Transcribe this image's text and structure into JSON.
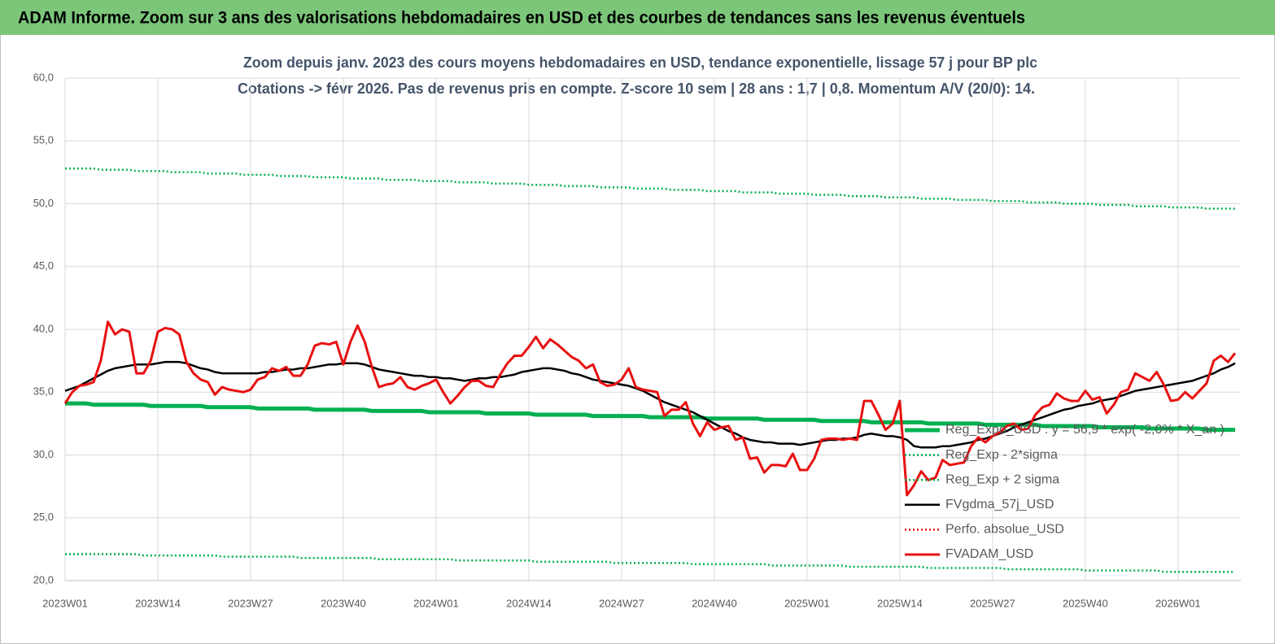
{
  "header": {
    "title": "ADAM Informe. Zoom sur 3 ans des valorisations hebdomadaires en USD et des courbes de tendances sans les revenus éventuels"
  },
  "chart_data": {
    "type": "line",
    "title": "Zoom depuis janv. 2023 des cours moyens hebdomadaires en USD, tendance exponentielle, lissage 57 j pour BP plc",
    "subtitle": "Cotations -> févr 2026.  Pas de revenus pris en compte. Z-score 10 sem | 28 ans : 1,7 | 0,8. Momentum A/V (20/0): 14.",
    "categories": [
      "2023W01",
      null,
      null,
      null,
      null,
      null,
      null,
      null,
      null,
      null,
      null,
      null,
      null,
      "2023W14",
      null,
      null,
      null,
      null,
      null,
      null,
      null,
      null,
      null,
      null,
      null,
      null,
      "2023W27",
      null,
      null,
      null,
      null,
      null,
      null,
      null,
      null,
      null,
      null,
      null,
      null,
      "2023W40",
      null,
      null,
      null,
      null,
      null,
      null,
      null,
      null,
      null,
      null,
      null,
      null,
      "2024W01",
      null,
      null,
      null,
      null,
      null,
      null,
      null,
      null,
      null,
      null,
      null,
      null,
      "2024W14",
      null,
      null,
      null,
      null,
      null,
      null,
      null,
      null,
      null,
      null,
      null,
      null,
      "2024W27",
      null,
      null,
      null,
      null,
      null,
      null,
      null,
      null,
      null,
      null,
      null,
      null,
      "2024W40",
      null,
      null,
      null,
      null,
      null,
      null,
      null,
      null,
      null,
      null,
      null,
      null,
      "2025W01",
      null,
      null,
      null,
      null,
      null,
      null,
      null,
      null,
      null,
      null,
      null,
      null,
      "2025W14",
      null,
      null,
      null,
      null,
      null,
      null,
      null,
      null,
      null,
      null,
      null,
      null,
      "2025W27",
      null,
      null,
      null,
      null,
      null,
      null,
      null,
      null,
      null,
      null,
      null,
      null,
      "2025W40",
      null,
      null,
      null,
      null,
      null,
      null,
      null,
      null,
      null,
      null,
      null,
      null,
      "2026W01",
      null,
      null,
      null,
      null,
      null,
      null,
      null,
      null
    ],
    "ylim": [
      20,
      60
    ],
    "yticks": [
      {
        "value": 20,
        "label": "20,0"
      },
      {
        "value": 25,
        "label": "25,0"
      },
      {
        "value": 30,
        "label": "30,0"
      },
      {
        "value": 35,
        "label": "35,0"
      },
      {
        "value": 40,
        "label": "40,0"
      },
      {
        "value": 45,
        "label": "45,0"
      },
      {
        "value": 50,
        "label": "50,0"
      },
      {
        "value": 55,
        "label": "55,0"
      },
      {
        "value": 60,
        "label": "60,0"
      }
    ],
    "grid": true,
    "legend": "lower-right",
    "series": [
      {
        "name": "Reg_Expo_USD : y = 56,9 * exp( -2,0% * X_an )",
        "color": "#00b050",
        "line_style": "thick",
        "values": [
          34.1,
          34.1,
          34.1,
          34.1,
          34.0,
          34.0,
          34.0,
          34.0,
          34.0,
          34.0,
          34.0,
          34.0,
          33.9,
          33.9,
          33.9,
          33.9,
          33.9,
          33.9,
          33.9,
          33.9,
          33.8,
          33.8,
          33.8,
          33.8,
          33.8,
          33.8,
          33.8,
          33.7,
          33.7,
          33.7,
          33.7,
          33.7,
          33.7,
          33.7,
          33.7,
          33.6,
          33.6,
          33.6,
          33.6,
          33.6,
          33.6,
          33.6,
          33.6,
          33.5,
          33.5,
          33.5,
          33.5,
          33.5,
          33.5,
          33.5,
          33.5,
          33.4,
          33.4,
          33.4,
          33.4,
          33.4,
          33.4,
          33.4,
          33.4,
          33.3,
          33.3,
          33.3,
          33.3,
          33.3,
          33.3,
          33.3,
          33.2,
          33.2,
          33.2,
          33.2,
          33.2,
          33.2,
          33.2,
          33.2,
          33.1,
          33.1,
          33.1,
          33.1,
          33.1,
          33.1,
          33.1,
          33.1,
          33.0,
          33.0,
          33.0,
          33.0,
          33.0,
          33.0,
          33.0,
          33.0,
          32.9,
          32.9,
          32.9,
          32.9,
          32.9,
          32.9,
          32.9,
          32.9,
          32.8,
          32.8,
          32.8,
          32.8,
          32.8,
          32.8,
          32.8,
          32.8,
          32.7,
          32.7,
          32.7,
          32.7,
          32.7,
          32.7,
          32.7,
          32.6,
          32.6,
          32.6,
          32.6,
          32.6,
          32.6,
          32.6,
          32.6,
          32.5,
          32.5,
          32.5,
          32.5,
          32.5,
          32.5,
          32.5,
          32.5,
          32.4,
          32.4,
          32.4,
          32.4,
          32.4,
          32.4,
          32.4,
          32.4,
          32.3,
          32.3,
          32.3,
          32.3,
          32.3,
          32.3,
          32.3,
          32.3,
          32.2,
          32.2,
          32.2,
          32.2,
          32.2,
          32.2,
          32.2,
          32.1,
          32.1,
          32.1,
          32.1,
          32.1,
          32.1,
          32.1,
          32.1,
          32.0,
          32.0,
          32.0,
          32.0,
          32.0
        ]
      },
      {
        "name": "Reg_Exp - 2*sigma",
        "color": "#00b050",
        "line_style": "dotted",
        "values": [
          22.1,
          22.1,
          22.1,
          22.1,
          22.1,
          22.1,
          22.1,
          22.1,
          22.1,
          22.1,
          22.1,
          22.0,
          22.0,
          22.0,
          22.0,
          22.0,
          22.0,
          22.0,
          22.0,
          22.0,
          22.0,
          22.0,
          21.9,
          21.9,
          21.9,
          21.9,
          21.9,
          21.9,
          21.9,
          21.9,
          21.9,
          21.9,
          21.9,
          21.8,
          21.8,
          21.8,
          21.8,
          21.8,
          21.8,
          21.8,
          21.8,
          21.8,
          21.8,
          21.8,
          21.7,
          21.7,
          21.7,
          21.7,
          21.7,
          21.7,
          21.7,
          21.7,
          21.7,
          21.7,
          21.7,
          21.6,
          21.6,
          21.6,
          21.6,
          21.6,
          21.6,
          21.6,
          21.6,
          21.6,
          21.6,
          21.6,
          21.5,
          21.5,
          21.5,
          21.5,
          21.5,
          21.5,
          21.5,
          21.5,
          21.5,
          21.5,
          21.5,
          21.4,
          21.4,
          21.4,
          21.4,
          21.4,
          21.4,
          21.4,
          21.4,
          21.4,
          21.4,
          21.4,
          21.3,
          21.3,
          21.3,
          21.3,
          21.3,
          21.3,
          21.3,
          21.3,
          21.3,
          21.3,
          21.3,
          21.2,
          21.2,
          21.2,
          21.2,
          21.2,
          21.2,
          21.2,
          21.2,
          21.2,
          21.2,
          21.2,
          21.1,
          21.1,
          21.1,
          21.1,
          21.1,
          21.1,
          21.1,
          21.1,
          21.1,
          21.1,
          21.1,
          21.0,
          21.0,
          21.0,
          21.0,
          21.0,
          21.0,
          21.0,
          21.0,
          21.0,
          21.0,
          21.0,
          20.9,
          20.9,
          20.9,
          20.9,
          20.9,
          20.9,
          20.9,
          20.9,
          20.9,
          20.9,
          20.9,
          20.8,
          20.8,
          20.8,
          20.8,
          20.8,
          20.8,
          20.8,
          20.8,
          20.8,
          20.8,
          20.8,
          20.7,
          20.7,
          20.7,
          20.7,
          20.7,
          20.7,
          20.7,
          20.7,
          20.7,
          20.7,
          20.7
        ]
      },
      {
        "name": "Reg_Exp + 2 sigma",
        "color": "#00b050",
        "line_style": "dotted",
        "values": [
          52.8,
          52.8,
          52.8,
          52.8,
          52.8,
          52.7,
          52.7,
          52.7,
          52.7,
          52.7,
          52.6,
          52.6,
          52.6,
          52.6,
          52.6,
          52.5,
          52.5,
          52.5,
          52.5,
          52.5,
          52.4,
          52.4,
          52.4,
          52.4,
          52.4,
          52.3,
          52.3,
          52.3,
          52.3,
          52.3,
          52.2,
          52.2,
          52.2,
          52.2,
          52.2,
          52.1,
          52.1,
          52.1,
          52.1,
          52.1,
          52.0,
          52.0,
          52.0,
          52.0,
          52.0,
          51.9,
          51.9,
          51.9,
          51.9,
          51.9,
          51.8,
          51.8,
          51.8,
          51.8,
          51.8,
          51.7,
          51.7,
          51.7,
          51.7,
          51.7,
          51.6,
          51.6,
          51.6,
          51.6,
          51.6,
          51.5,
          51.5,
          51.5,
          51.5,
          51.5,
          51.4,
          51.4,
          51.4,
          51.4,
          51.4,
          51.3,
          51.3,
          51.3,
          51.3,
          51.3,
          51.2,
          51.2,
          51.2,
          51.2,
          51.2,
          51.1,
          51.1,
          51.1,
          51.1,
          51.1,
          51.0,
          51.0,
          51.0,
          51.0,
          51.0,
          50.9,
          50.9,
          50.9,
          50.9,
          50.9,
          50.8,
          50.8,
          50.8,
          50.8,
          50.8,
          50.7,
          50.7,
          50.7,
          50.7,
          50.7,
          50.6,
          50.6,
          50.6,
          50.6,
          50.6,
          50.5,
          50.5,
          50.5,
          50.5,
          50.5,
          50.4,
          50.4,
          50.4,
          50.4,
          50.4,
          50.3,
          50.3,
          50.3,
          50.3,
          50.3,
          50.2,
          50.2,
          50.2,
          50.2,
          50.2,
          50.1,
          50.1,
          50.1,
          50.1,
          50.1,
          50.0,
          50.0,
          50.0,
          50.0,
          50.0,
          49.9,
          49.9,
          49.9,
          49.9,
          49.9,
          49.8,
          49.8,
          49.8,
          49.8,
          49.8,
          49.7,
          49.7,
          49.7,
          49.7,
          49.7,
          49.6,
          49.6,
          49.6,
          49.6,
          49.6
        ]
      },
      {
        "name": "FVgdma_57j_USD",
        "color": "#000000",
        "line_style": "solid",
        "values": [
          35.1,
          35.3,
          35.5,
          35.8,
          36.1,
          36.4,
          36.7,
          36.9,
          37.0,
          37.1,
          37.2,
          37.2,
          37.2,
          37.3,
          37.4,
          37.4,
          37.4,
          37.3,
          37.1,
          36.9,
          36.8,
          36.6,
          36.5,
          36.5,
          36.5,
          36.5,
          36.5,
          36.5,
          36.6,
          36.6,
          36.7,
          36.8,
          36.8,
          36.9,
          36.9,
          37.0,
          37.1,
          37.2,
          37.2,
          37.3,
          37.3,
          37.3,
          37.2,
          37.0,
          36.8,
          36.7,
          36.6,
          36.5,
          36.4,
          36.3,
          36.3,
          36.2,
          36.2,
          36.1,
          36.1,
          36.0,
          35.9,
          36.0,
          36.1,
          36.1,
          36.2,
          36.2,
          36.3,
          36.4,
          36.6,
          36.7,
          36.8,
          36.9,
          36.9,
          36.8,
          36.7,
          36.5,
          36.4,
          36.2,
          36.0,
          35.9,
          35.8,
          35.7,
          35.6,
          35.5,
          35.3,
          35.1,
          34.8,
          34.5,
          34.2,
          34.0,
          33.8,
          33.6,
          33.4,
          33.1,
          32.8,
          32.5,
          32.2,
          31.9,
          31.7,
          31.4,
          31.2,
          31.1,
          31.0,
          31.0,
          30.9,
          30.9,
          30.9,
          30.8,
          30.9,
          31.0,
          31.1,
          31.2,
          31.2,
          31.3,
          31.3,
          31.4,
          31.6,
          31.7,
          31.6,
          31.5,
          31.5,
          31.4,
          31.2,
          30.7,
          30.6,
          30.6,
          30.6,
          30.7,
          30.7,
          30.8,
          30.9,
          31.0,
          31.2,
          31.3,
          31.5,
          31.7,
          31.9,
          32.2,
          32.4,
          32.6,
          32.8,
          33.0,
          33.2,
          33.4,
          33.6,
          33.7,
          33.9,
          34.0,
          34.1,
          34.3,
          34.4,
          34.5,
          34.7,
          34.9,
          35.1,
          35.2,
          35.3,
          35.4,
          35.5,
          35.6,
          35.7,
          35.8,
          35.9,
          36.1,
          36.3,
          36.5,
          36.8,
          37.0,
          37.3
        ]
      },
      {
        "name": "Perfo. absolue_USD",
        "color": "#e81010",
        "line_style": "dotted",
        "values": [
          null,
          null,
          null,
          null,
          null,
          null,
          null,
          null,
          null,
          null,
          null,
          null,
          null,
          null,
          null,
          null,
          null,
          null,
          null,
          null,
          null,
          null,
          null,
          null,
          null,
          null,
          null,
          null,
          null,
          null,
          null,
          null,
          null,
          null,
          null,
          null,
          null,
          null,
          null,
          null,
          null,
          null,
          null,
          null,
          null,
          null,
          null,
          null,
          null,
          null,
          null,
          null,
          null,
          null,
          null,
          null,
          null,
          null,
          null,
          null,
          null,
          null,
          null,
          null,
          null,
          null,
          null,
          null,
          null,
          null,
          null,
          null,
          null,
          null,
          null,
          null,
          null,
          null,
          null,
          null,
          null,
          null,
          null,
          null,
          null,
          null,
          null,
          null,
          null,
          null,
          null,
          null,
          null,
          null,
          null,
          null,
          null,
          null,
          null,
          null,
          null,
          null,
          null,
          null,
          null,
          null,
          null,
          null,
          null,
          null,
          null,
          null,
          null,
          null,
          null,
          null,
          null,
          null,
          null,
          null,
          null,
          null,
          null,
          null,
          null,
          null,
          null,
          null,
          null,
          null,
          null,
          null,
          null,
          null,
          null,
          null,
          null,
          null,
          null,
          null,
          null,
          null,
          null,
          null,
          null,
          null,
          null,
          null,
          null,
          null,
          null,
          null,
          null,
          null,
          null,
          null,
          null,
          null,
          null,
          null,
          null,
          null,
          null,
          null,
          null
        ]
      },
      {
        "name": "FVADAM_USD",
        "color": "#e81010",
        "line_style": "solid",
        "values": [
          34.1,
          35.0,
          35.5,
          35.6,
          35.8,
          37.5,
          40.6,
          39.6,
          40.0,
          39.8,
          36.5,
          36.5,
          37.5,
          39.8,
          40.1,
          40.0,
          39.6,
          37.4,
          36.5,
          36.0,
          35.8,
          34.8,
          35.4,
          35.2,
          35.1,
          35.0,
          35.2,
          36.0,
          36.2,
          36.9,
          36.7,
          37.0,
          36.3,
          36.3,
          37.2,
          38.7,
          38.9,
          38.8,
          39.0,
          37.2,
          39.0,
          40.3,
          39.0,
          37.0,
          35.4,
          35.6,
          35.7,
          36.2,
          35.4,
          35.2,
          35.5,
          35.7,
          36.0,
          35.0,
          34.1,
          34.7,
          35.4,
          35.9,
          35.9,
          35.5,
          35.4,
          36.4,
          37.3,
          37.9,
          37.9,
          38.6,
          39.4,
          38.5,
          39.2,
          38.8,
          38.3,
          37.8,
          37.5,
          36.9,
          37.2,
          35.8,
          35.5,
          35.6,
          36.0,
          36.9,
          35.4,
          35.2,
          35.1,
          35.0,
          33.1,
          33.6,
          33.6,
          34.2,
          32.5,
          31.5,
          32.6,
          32.0,
          32.2,
          32.3,
          31.2,
          31.4,
          29.7,
          29.8,
          28.6,
          29.2,
          29.2,
          29.1,
          30.1,
          28.8,
          28.8,
          29.7,
          31.2,
          31.3,
          31.3,
          31.2,
          31.3,
          31.2,
          34.3,
          34.3,
          33.2,
          32.0,
          32.5,
          34.3,
          26.8,
          27.6,
          28.7,
          28.0,
          28.2,
          29.6,
          29.2,
          29.3,
          29.4,
          30.7,
          31.4,
          31.0,
          31.5,
          31.8,
          32.3,
          32.5,
          32.0,
          32.1,
          33.2,
          33.8,
          34.0,
          34.9,
          34.5,
          34.3,
          34.3,
          35.1,
          34.4,
          34.6,
          33.3,
          34.0,
          35.0,
          35.2,
          36.5,
          36.2,
          35.9,
          36.6,
          35.6,
          34.3,
          34.4,
          35.0,
          34.5,
          35.1,
          35.7,
          37.5,
          37.9,
          37.4,
          38.1
        ]
      }
    ]
  }
}
